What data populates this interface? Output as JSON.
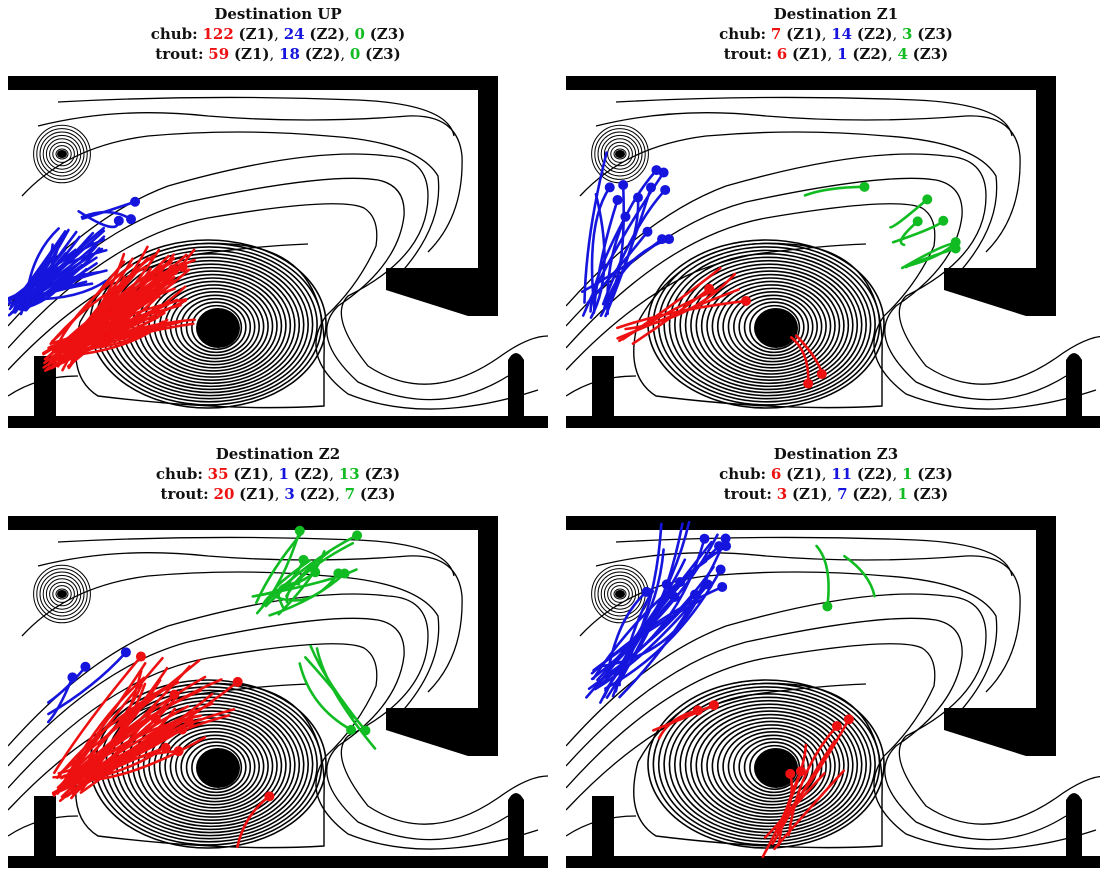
{
  "colors": {
    "z1": "#ee1111",
    "z2": "#1515dd",
    "z3": "#11bb22",
    "wall": "#000000"
  },
  "panels": [
    {
      "title": "Destination UP",
      "chub": {
        "label": "chub:",
        "z1": "122",
        "z2": "24",
        "z3": "0"
      },
      "trout": {
        "label": "trout:",
        "z1": "59",
        "z2": "18",
        "z3": "0"
      }
    },
    {
      "title": "Destination Z1",
      "chub": {
        "label": "chub:",
        "z1": "7",
        "z2": "14",
        "z3": "3"
      },
      "trout": {
        "label": "trout:",
        "z1": "6",
        "z2": "1",
        "z3": "4"
      }
    },
    {
      "title": "Destination Z2",
      "chub": {
        "label": "chub:",
        "z1": "35",
        "z2": "1",
        "z3": "13"
      },
      "trout": {
        "label": "trout:",
        "z1": "20",
        "z2": "3",
        "z3": "7"
      }
    },
    {
      "title": "Destination Z3",
      "chub": {
        "label": "chub:",
        "z1": "6",
        "z2": "11",
        "z3": "1"
      },
      "trout": {
        "label": "trout:",
        "z1": "3",
        "z2": "7",
        "z3": "1"
      }
    }
  ],
  "zone_tags": {
    "z1": "(Z1)",
    "z2": "(Z2)",
    "z3": "(Z3)"
  }
}
